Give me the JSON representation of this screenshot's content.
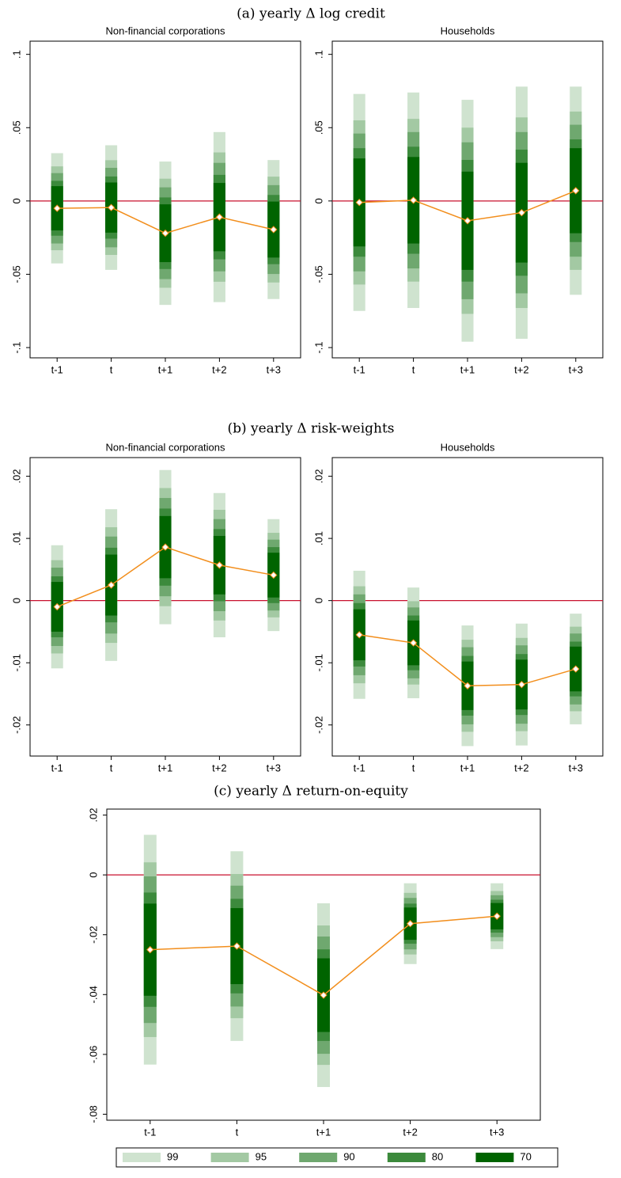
{
  "headings": [
    "(a) yearly Δ log credit",
    "(b) yearly Δ risk-weights",
    "(c) yearly Δ return-on-equity"
  ],
  "chart_data": [
    {
      "type": "coefplot",
      "title": "Non-financial corporations",
      "categories": [
        "t-1",
        "t",
        "t+1",
        "t+2",
        "t+3"
      ],
      "values": [
        -0.005,
        -0.0045,
        -0.022,
        -0.011,
        -0.0195
      ],
      "line_color": "#f28e1c",
      "hline": 0,
      "hline_color": "#c8102e",
      "ylim": [
        -0.107,
        0.109
      ],
      "yticks": [
        {
          "value": -0.1,
          "label": "-.1"
        },
        {
          "value": -0.05,
          "label": "-.05"
        },
        0,
        {
          "value": 0.05,
          "label": ".05"
        },
        {
          "value": 0.1,
          "label": ".1"
        }
      ],
      "series": [
        {
          "color": "#cfe3cf",
          "low": [
            -0.0426,
            -0.047,
            -0.0709,
            -0.069,
            -0.0669
          ],
          "high": [
            0.0326,
            0.038,
            0.0269,
            0.047,
            0.0279
          ]
        },
        {
          "color": "#a3c9a3",
          "low": [
            -0.0336,
            -0.0368,
            -0.0592,
            -0.0551,
            -0.0556
          ],
          "high": [
            0.0236,
            0.0278,
            0.0152,
            0.0331,
            0.0166
          ]
        },
        {
          "color": "#6fa86f",
          "low": [
            -0.029,
            -0.0316,
            -0.0533,
            -0.048,
            -0.0498
          ],
          "high": [
            0.019,
            0.0226,
            0.0093,
            0.026,
            0.0108
          ]
        },
        {
          "color": "#3c8a3c",
          "low": [
            -0.0237,
            -0.0257,
            -0.0464,
            -0.0398,
            -0.0431
          ],
          "high": [
            0.0137,
            0.0167,
            0.0024,
            0.0178,
            0.0041
          ]
        },
        {
          "color": "#006400",
          "low": [
            -0.0201,
            -0.0216,
            -0.0417,
            -0.0343,
            -0.0386
          ],
          "high": [
            0.0101,
            0.0126,
            -0.0023,
            0.0123,
            -0.0004
          ]
        }
      ]
    },
    {
      "type": "coefplot",
      "title": "Households",
      "categories": [
        "t-1",
        "t",
        "t+1",
        "t+2",
        "t+3"
      ],
      "values": [
        -0.001,
        0.0005,
        -0.0135,
        -0.008,
        0.007
      ],
      "line_color": "#f28e1c",
      "hline": 0,
      "hline_color": "#c8102e",
      "ylim": [
        -0.107,
        0.109
      ],
      "yticks": [
        {
          "value": -0.1,
          "label": "-.1"
        },
        {
          "value": -0.05,
          "label": "-.05"
        },
        0,
        {
          "value": 0.05,
          "label": ".05"
        },
        {
          "value": 0.1,
          "label": ".1"
        }
      ],
      "series": [
        {
          "color": "#cfe3cf",
          "low": [
            -0.075,
            -0.073,
            -0.096,
            -0.094,
            -0.064
          ],
          "high": [
            0.073,
            0.074,
            0.069,
            0.078,
            0.078
          ]
        },
        {
          "color": "#a3c9a3",
          "low": [
            -0.057,
            -0.055,
            -0.077,
            -0.073,
            -0.047
          ],
          "high": [
            0.055,
            0.056,
            0.05,
            0.057,
            0.061
          ]
        },
        {
          "color": "#6fa86f",
          "low": [
            -0.048,
            -0.046,
            -0.067,
            -0.063,
            -0.038
          ],
          "high": [
            0.046,
            0.047,
            0.04,
            0.047,
            0.052
          ]
        },
        {
          "color": "#3c8a3c",
          "low": [
            -0.038,
            -0.036,
            -0.055,
            -0.051,
            -0.028
          ],
          "high": [
            0.036,
            0.037,
            0.028,
            0.035,
            0.042
          ]
        },
        {
          "color": "#006400",
          "low": [
            -0.031,
            -0.029,
            -0.047,
            -0.042,
            -0.022
          ],
          "high": [
            0.029,
            0.03,
            0.02,
            0.026,
            0.036
          ]
        }
      ]
    },
    {
      "type": "coefplot",
      "title": "Non-financial corporations",
      "categories": [
        "t-1",
        "t",
        "t+1",
        "t+2",
        "t+3"
      ],
      "values": [
        -0.001,
        0.0025,
        0.0086,
        0.0057,
        0.0041
      ],
      "line_color": "#f28e1c",
      "hline": 0,
      "hline_color": "#c8102e",
      "ylim": [
        -0.025,
        0.023
      ],
      "yticks": [
        {
          "value": -0.02,
          "label": "-.02"
        },
        {
          "value": -0.01,
          "label": "-.01"
        },
        0,
        {
          "value": 0.01,
          "label": ".01"
        },
        {
          "value": 0.02,
          "label": ".02"
        }
      ],
      "series": [
        {
          "color": "#cfe3cf",
          "low": [
            -0.0109,
            -0.0097,
            -0.0038,
            -0.0059,
            -0.0049
          ],
          "high": [
            0.0089,
            0.0147,
            0.021,
            0.0173,
            0.0131
          ]
        },
        {
          "color": "#a3c9a3",
          "low": [
            -0.0085,
            -0.0068,
            -0.0009,
            -0.0032,
            -0.0027
          ],
          "high": [
            0.0065,
            0.0118,
            0.0181,
            0.0146,
            0.0109
          ]
        },
        {
          "color": "#6fa86f",
          "low": [
            -0.0073,
            -0.0053,
            0.0007,
            -0.0017,
            -0.0016
          ],
          "high": [
            0.0053,
            0.0103,
            0.0165,
            0.0131,
            0.0098
          ]
        },
        {
          "color": "#3c8a3c",
          "low": [
            -0.0059,
            -0.0035,
            0.0024,
            -0.0001,
            -0.0004
          ],
          "high": [
            0.0039,
            0.0085,
            0.0148,
            0.0115,
            0.0086
          ]
        },
        {
          "color": "#006400",
          "low": [
            -0.005,
            -0.0024,
            0.0036,
            0.001,
            0.0005
          ],
          "high": [
            0.003,
            0.0074,
            0.0136,
            0.0104,
            0.0077
          ]
        }
      ]
    },
    {
      "type": "coefplot",
      "title": "Households",
      "categories": [
        "t-1",
        "t",
        "t+1",
        "t+2",
        "t+3"
      ],
      "values": [
        -0.0055,
        -0.0068,
        -0.0137,
        -0.0135,
        -0.011
      ],
      "line_color": "#f28e1c",
      "hline": 0,
      "hline_color": "#c8102e",
      "ylim": [
        -0.025,
        0.023
      ],
      "yticks": [
        {
          "value": -0.02,
          "label": "-.02"
        },
        {
          "value": -0.01,
          "label": "-.01"
        },
        0,
        {
          "value": 0.01,
          "label": ".01"
        },
        {
          "value": 0.02,
          "label": ".02"
        }
      ],
      "series": [
        {
          "color": "#cfe3cf",
          "low": [
            -0.0158,
            -0.0157,
            -0.0234,
            -0.0233,
            -0.0199
          ],
          "high": [
            0.0048,
            0.0021,
            -0.004,
            -0.0037,
            -0.0021
          ]
        },
        {
          "color": "#a3c9a3",
          "low": [
            -0.0133,
            -0.0135,
            -0.0211,
            -0.021,
            -0.0178
          ],
          "high": [
            0.0023,
            -0.0001,
            -0.0063,
            -0.006,
            -0.0042
          ]
        },
        {
          "color": "#6fa86f",
          "low": [
            -0.012,
            -0.0125,
            -0.0199,
            -0.0198,
            -0.0167
          ],
          "high": [
            0.001,
            -0.0011,
            -0.0075,
            -0.0072,
            -0.0053
          ]
        },
        {
          "color": "#3c8a3c",
          "low": [
            -0.0106,
            -0.0112,
            -0.0185,
            -0.0184,
            -0.0154
          ],
          "high": [
            -0.0004,
            -0.0024,
            -0.0089,
            -0.0086,
            -0.0066
          ]
        },
        {
          "color": "#006400",
          "low": [
            -0.0096,
            -0.0104,
            -0.0176,
            -0.0175,
            -0.0146
          ],
          "high": [
            -0.0014,
            -0.0032,
            -0.0098,
            -0.0095,
            -0.0074
          ]
        }
      ]
    },
    {
      "type": "coefplot",
      "categories": [
        "t-1",
        "t",
        "t+1",
        "t+2",
        "t+3"
      ],
      "values": [
        -0.025,
        -0.0238,
        -0.0402,
        -0.0163,
        -0.0138
      ],
      "line_color": "#f28e1c",
      "hline": 0,
      "hline_color": "#c8102e",
      "ylim": [
        -0.082,
        0.022
      ],
      "yticks": [
        {
          "value": -0.08,
          "label": "-.08"
        },
        {
          "value": -0.06,
          "label": "-.06"
        },
        {
          "value": -0.04,
          "label": "-.04"
        },
        {
          "value": -0.02,
          "label": "-.02"
        },
        0,
        {
          "value": 0.02,
          "label": ".02"
        }
      ],
      "legend": "bottom",
      "series": [
        {
          "name": "99",
          "color": "#cfe3cf",
          "low": [
            -0.0634,
            -0.0555,
            -0.0709,
            -0.0298,
            -0.0248
          ],
          "high": [
            0.0134,
            0.0079,
            -0.0095,
            -0.0028,
            -0.0028
          ]
        },
        {
          "name": "95",
          "color": "#a3c9a3",
          "low": [
            -0.0542,
            -0.0479,
            -0.0635,
            -0.0266,
            -0.0222
          ],
          "high": [
            0.0042,
            0.0003,
            -0.0169,
            -0.006,
            -0.0054
          ]
        },
        {
          "name": "90",
          "color": "#6fa86f",
          "low": [
            -0.0495,
            -0.044,
            -0.0598,
            -0.0249,
            -0.0208
          ],
          "high": [
            -0.0005,
            -0.0036,
            -0.0206,
            -0.0077,
            -0.0068
          ]
        },
        {
          "name": "80",
          "color": "#3c8a3c",
          "low": [
            -0.0441,
            -0.0396,
            -0.0555,
            -0.023,
            -0.0193
          ],
          "high": [
            -0.0059,
            -0.008,
            -0.0249,
            -0.0096,
            -0.0083
          ]
        },
        {
          "name": "70",
          "color": "#006400",
          "low": [
            -0.0404,
            -0.0365,
            -0.0525,
            -0.0217,
            -0.0182
          ],
          "high": [
            -0.0096,
            -0.0111,
            -0.0279,
            -0.0109,
            -0.0094
          ]
        }
      ]
    }
  ]
}
